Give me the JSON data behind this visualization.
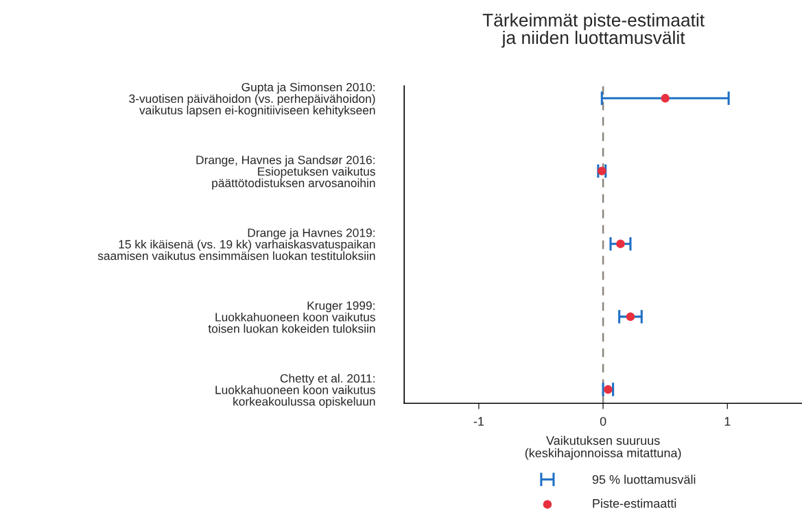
{
  "chart_data": {
    "type": "scatter",
    "orientation": "horizontal",
    "title": "Tärkeimmät piste-estimaatit\nja niiden luottamusvälit",
    "xlabel": "Vaikutuksen suuruus\n(keskihajonnoissa mitattuna)",
    "categories": [
      "Gupta ja Simonsen 2010:\n3-vuotisen päivähoidon (vs. perhepäivähoidon)\nvaikutus lapsen ei-kognitiiviseen kehitykseen",
      "Drange, Havnes ja Sandsør 2016:\nEsiopetuksen vaikutus\npäättötodistuksen arvosanoihin",
      "Drange ja Havnes 2019:\n15 kk ikäisenä (vs. 19 kk) varhaiskasvatuspaikan\nsaamisen vaikutus ensimmäisen luokan testituloksiin",
      "Kruger 1999:\nLuokkahuoneen koon vaikutus\ntoisen luokan kokeiden tuloksiin",
      "Chetty et al. 2011:\nLuokkahuoneen koon vaikutus\nkorkeakoulussa opiskeluun"
    ],
    "series": [
      {
        "name": "Piste-estimaatti",
        "color": "#e8303f",
        "marker": "circle",
        "values": [
          0.5,
          -0.01,
          0.14,
          0.22,
          0.04
        ],
        "errors": [
          [
            -0.01,
            1.01
          ],
          [
            -0.04,
            0.02
          ],
          [
            0.06,
            0.22
          ],
          [
            0.13,
            0.31
          ],
          [
            0.0,
            0.08
          ]
        ]
      }
    ],
    "xlim": [
      -1.6,
      1.6
    ],
    "xticks": [
      -1,
      0,
      1
    ],
    "ref_lines": [
      {
        "axis": "x",
        "value": 0,
        "color": "#8c867c",
        "line_style": "dashed"
      }
    ],
    "annotations": [
      "95 % luottamusväli"
    ],
    "grid": false,
    "legend": "bottom"
  }
}
